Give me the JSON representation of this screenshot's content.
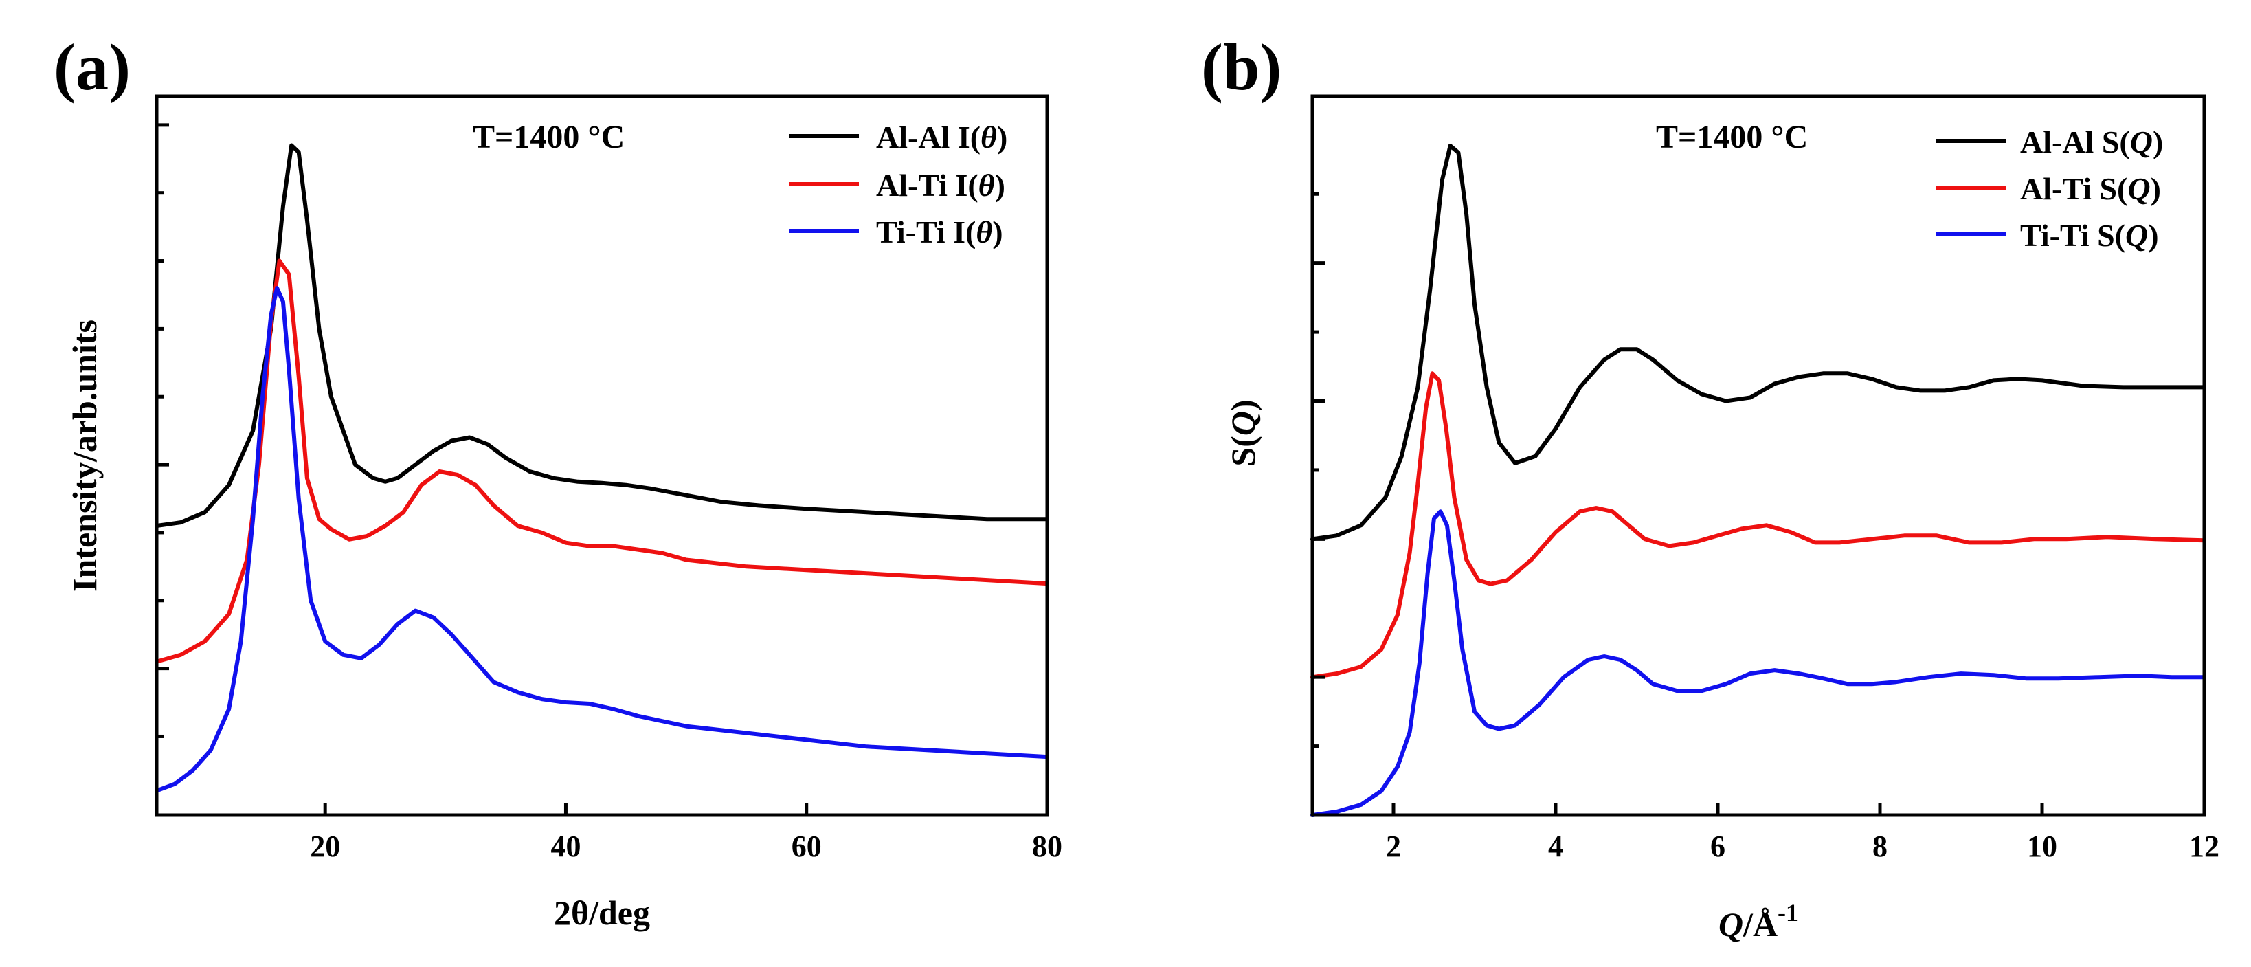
{
  "chart_data": [
    {
      "type": "line",
      "panel_label": "(a)",
      "annotation": "T=1400 °C",
      "xlabel_var": "2θ",
      "xlabel_unit": "/deg",
      "ylabel": "Intensity/arb.units",
      "xlim": [
        6,
        80
      ],
      "ylim": [
        0,
        1
      ],
      "x_ticks": [
        20,
        40,
        60,
        80
      ],
      "x_tick_labels": [
        "20",
        "40",
        "60",
        "80"
      ],
      "y_ticks": [
        0.2,
        0.5,
        1.0
      ],
      "y_tick_labels": [
        "",
        "",
        ""
      ],
      "y_minor_ticks": [
        0.1,
        0.3,
        0.4,
        0.6,
        0.7,
        0.8,
        0.9
      ],
      "legend": [
        {
          "label_prefix": "Al-Al I(",
          "label_var": "θ",
          "label_suffix": ")",
          "color": "#000000"
        },
        {
          "label_prefix": "Al-Ti I(",
          "label_var": "θ",
          "label_suffix": ")",
          "color": "#ee1111"
        },
        {
          "label_prefix": "Ti-Ti I(",
          "label_var": "θ",
          "label_suffix": ")",
          "color": "#1111ee"
        }
      ],
      "series": [
        {
          "name": "Al-Al I(θ)",
          "color": "#000000",
          "x": [
            6,
            8,
            10,
            12,
            14,
            15.5,
            16.5,
            17.2,
            17.8,
            18.5,
            19.5,
            20.5,
            21.5,
            22.5,
            24,
            25,
            26,
            27.5,
            29,
            30.5,
            32,
            33.5,
            35,
            37,
            39,
            41,
            43,
            45,
            47,
            50,
            53,
            56,
            60,
            65,
            70,
            75,
            80
          ],
          "y": [
            0.41,
            0.415,
            0.43,
            0.47,
            0.55,
            0.7,
            0.88,
            0.97,
            0.96,
            0.86,
            0.7,
            0.6,
            0.55,
            0.5,
            0.48,
            0.475,
            0.48,
            0.5,
            0.52,
            0.535,
            0.54,
            0.53,
            0.51,
            0.49,
            0.48,
            0.475,
            0.473,
            0.47,
            0.465,
            0.455,
            0.445,
            0.44,
            0.435,
            0.43,
            0.425,
            0.42,
            0.42
          ]
        },
        {
          "name": "Al-Ti I(θ)",
          "color": "#ee1111",
          "x": [
            6,
            8,
            10,
            12,
            13.5,
            14.5,
            15.5,
            16.2,
            17,
            17.8,
            18.5,
            19.5,
            20.5,
            22,
            23.5,
            25,
            26.5,
            28,
            29.5,
            31,
            32.5,
            34,
            36,
            38,
            40,
            42,
            44,
            46,
            48,
            50,
            55,
            60,
            65,
            70,
            75,
            80
          ],
          "y": [
            0.21,
            0.22,
            0.24,
            0.28,
            0.36,
            0.5,
            0.71,
            0.8,
            0.78,
            0.63,
            0.48,
            0.42,
            0.405,
            0.39,
            0.395,
            0.41,
            0.43,
            0.47,
            0.49,
            0.485,
            0.47,
            0.44,
            0.41,
            0.4,
            0.385,
            0.38,
            0.38,
            0.375,
            0.37,
            0.36,
            0.35,
            0.345,
            0.34,
            0.335,
            0.33,
            0.325
          ]
        },
        {
          "name": "Ti-Ti I(θ)",
          "color": "#1111ee",
          "x": [
            6,
            7.5,
            9,
            10.5,
            12,
            13,
            14,
            14.8,
            15.5,
            16,
            16.5,
            17,
            17.8,
            18.8,
            20,
            21.5,
            23,
            24.5,
            26,
            27.5,
            29,
            30.5,
            32,
            34,
            36,
            38,
            40,
            42,
            44,
            46,
            50,
            55,
            60,
            65,
            70,
            75,
            80
          ],
          "y": [
            0.02,
            0.03,
            0.05,
            0.08,
            0.14,
            0.24,
            0.42,
            0.6,
            0.72,
            0.76,
            0.74,
            0.64,
            0.45,
            0.3,
            0.24,
            0.22,
            0.215,
            0.235,
            0.265,
            0.285,
            0.275,
            0.25,
            0.22,
            0.18,
            0.165,
            0.155,
            0.15,
            0.148,
            0.14,
            0.13,
            0.115,
            0.105,
            0.095,
            0.085,
            0.08,
            0.075,
            0.07
          ]
        }
      ]
    },
    {
      "type": "line",
      "panel_label": "(b)",
      "annotation": "T=1400 °C",
      "xlabel_var": "Q",
      "xlabel_unit": "/Å",
      "xlabel_sup": "-1",
      "ylabel_prefix": "S(",
      "ylabel_var": "Q",
      "ylabel_suffix": ")",
      "xlim": [
        1,
        12
      ],
      "ylim": [
        0,
        1
      ],
      "x_ticks": [
        2,
        4,
        6,
        8,
        10,
        12
      ],
      "x_tick_labels": [
        "2",
        "4",
        "6",
        "8",
        "10",
        "12"
      ],
      "y_ticks": [
        0.2,
        0.4,
        0.6,
        0.8
      ],
      "y_tick_labels": [
        "",
        "",
        "",
        ""
      ],
      "y_minor_ticks": [
        0.1,
        0.5,
        0.7,
        0.9
      ],
      "legend": [
        {
          "label_prefix": "Al-Al S(",
          "label_var": "Q",
          "label_suffix": ")",
          "color": "#000000"
        },
        {
          "label_prefix": "Al-Ti S(",
          "label_var": "Q",
          "label_suffix": ")",
          "color": "#ee1111"
        },
        {
          "label_prefix": "Ti-Ti S(",
          "label_var": "Q",
          "label_suffix": ")",
          "color": "#1111ee"
        }
      ],
      "series": [
        {
          "name": "Al-Al S(Q)",
          "color": "#000000",
          "x": [
            1.0,
            1.3,
            1.6,
            1.9,
            2.1,
            2.3,
            2.45,
            2.6,
            2.7,
            2.8,
            2.9,
            3.0,
            3.15,
            3.3,
            3.5,
            3.75,
            4.0,
            4.3,
            4.6,
            4.8,
            5.0,
            5.2,
            5.5,
            5.8,
            6.1,
            6.4,
            6.7,
            7.0,
            7.3,
            7.6,
            7.9,
            8.2,
            8.5,
            8.8,
            9.1,
            9.4,
            9.7,
            10.0,
            10.5,
            11.0,
            11.5,
            12.0
          ],
          "y": [
            0.4,
            0.405,
            0.42,
            0.46,
            0.52,
            0.62,
            0.76,
            0.92,
            0.97,
            0.96,
            0.87,
            0.74,
            0.62,
            0.54,
            0.51,
            0.52,
            0.56,
            0.62,
            0.66,
            0.675,
            0.675,
            0.66,
            0.63,
            0.61,
            0.6,
            0.605,
            0.625,
            0.635,
            0.64,
            0.64,
            0.632,
            0.62,
            0.615,
            0.615,
            0.62,
            0.63,
            0.632,
            0.63,
            0.622,
            0.62,
            0.62,
            0.62
          ]
        },
        {
          "name": "Al-Ti S(Q)",
          "color": "#ee1111",
          "x": [
            1.0,
            1.3,
            1.6,
            1.85,
            2.05,
            2.2,
            2.3,
            2.4,
            2.48,
            2.56,
            2.65,
            2.75,
            2.9,
            3.05,
            3.2,
            3.4,
            3.7,
            4.0,
            4.3,
            4.5,
            4.7,
            4.9,
            5.1,
            5.4,
            5.7,
            6.0,
            6.3,
            6.6,
            6.9,
            7.2,
            7.5,
            7.9,
            8.3,
            8.7,
            9.1,
            9.5,
            9.9,
            10.3,
            10.8,
            11.4,
            12.0
          ],
          "y": [
            0.2,
            0.205,
            0.215,
            0.24,
            0.29,
            0.38,
            0.48,
            0.59,
            0.64,
            0.63,
            0.56,
            0.46,
            0.37,
            0.34,
            0.335,
            0.34,
            0.37,
            0.41,
            0.44,
            0.445,
            0.44,
            0.42,
            0.4,
            0.39,
            0.395,
            0.405,
            0.415,
            0.42,
            0.41,
            0.395,
            0.395,
            0.4,
            0.405,
            0.405,
            0.395,
            0.395,
            0.4,
            0.4,
            0.403,
            0.4,
            0.398
          ]
        },
        {
          "name": "Ti-Ti S(Q)",
          "color": "#1111ee",
          "x": [
            1.0,
            1.3,
            1.6,
            1.85,
            2.05,
            2.2,
            2.32,
            2.42,
            2.5,
            2.58,
            2.66,
            2.75,
            2.85,
            3.0,
            3.15,
            3.3,
            3.5,
            3.8,
            4.1,
            4.4,
            4.6,
            4.8,
            5.0,
            5.2,
            5.5,
            5.8,
            6.1,
            6.4,
            6.7,
            7.0,
            7.3,
            7.6,
            7.9,
            8.2,
            8.6,
            9.0,
            9.4,
            9.8,
            10.2,
            10.7,
            11.2,
            11.6,
            12.0
          ],
          "y": [
            0.0,
            0.005,
            0.015,
            0.035,
            0.07,
            0.12,
            0.22,
            0.35,
            0.43,
            0.44,
            0.42,
            0.34,
            0.24,
            0.15,
            0.13,
            0.125,
            0.13,
            0.16,
            0.2,
            0.225,
            0.23,
            0.225,
            0.21,
            0.19,
            0.18,
            0.18,
            0.19,
            0.205,
            0.21,
            0.205,
            0.198,
            0.19,
            0.19,
            0.193,
            0.2,
            0.205,
            0.203,
            0.198,
            0.198,
            0.2,
            0.202,
            0.2,
            0.2
          ]
        }
      ]
    }
  ]
}
